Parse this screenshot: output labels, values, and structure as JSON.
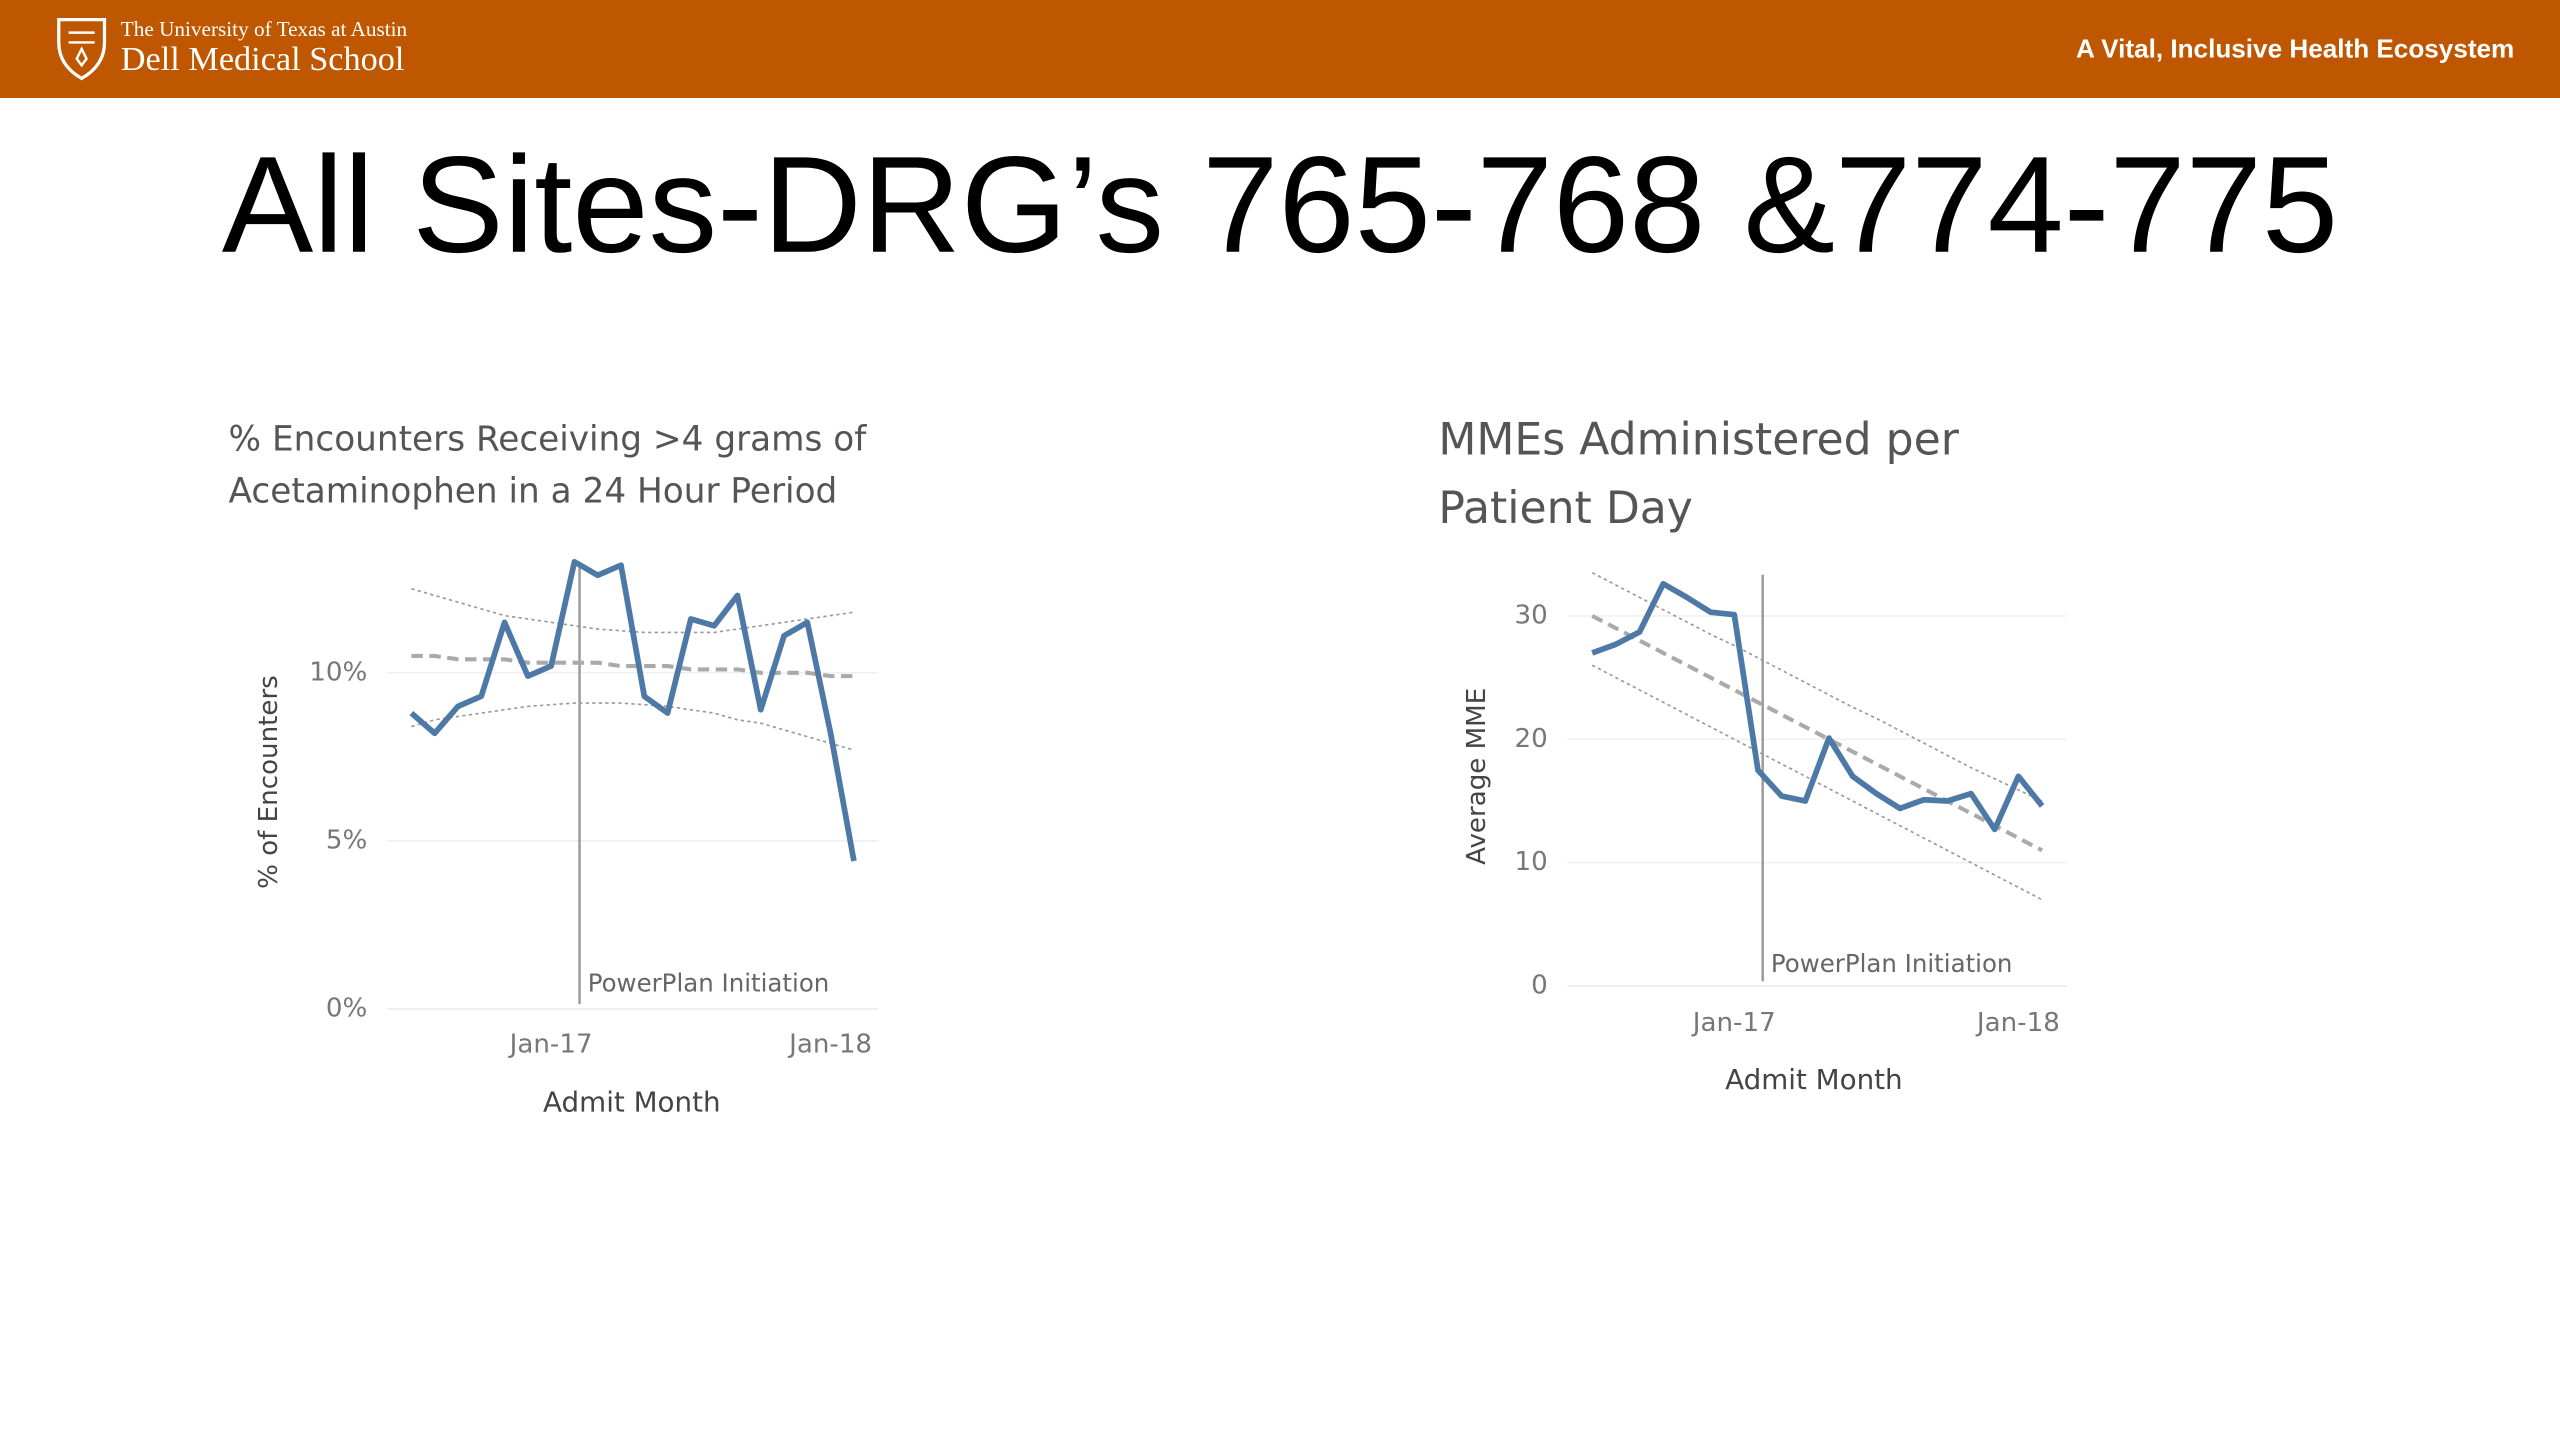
{
  "header": {
    "university": "The University of Texas at Austin",
    "school": "Dell Medical School",
    "tagline": "A Vital, Inclusive Health Ecosystem"
  },
  "title": "All Sites-DRG’s 765-768 &774-775",
  "chart_data": [
    {
      "type": "line",
      "title": [
        "% Encounters Receiving >4 grams of",
        "Acetaminophen in a 24 Hour Period"
      ],
      "x_label": "Admit Month",
      "y_label": "% of Encounters",
      "categories": [
        null,
        null,
        null,
        null,
        null,
        null,
        "Jan-17",
        null,
        null,
        null,
        null,
        null,
        null,
        null,
        null,
        null,
        null,
        null,
        "Jan-18",
        null
      ],
      "series": [
        {
          "color": "#4e79a7",
          "values": [
            8.8,
            8.2,
            9.0,
            9.3,
            11.5,
            9.9,
            10.2,
            13.3,
            12.9,
            13.2,
            9.3,
            8.8,
            11.6,
            11.4,
            12.3,
            8.9,
            11.1,
            11.5,
            8.2,
            4.4
          ]
        }
      ],
      "trend": [
        10.5,
        10.5,
        10.4,
        10.4,
        10.4,
        10.3,
        10.3,
        10.3,
        10.3,
        10.2,
        10.2,
        10.2,
        10.1,
        10.1,
        10.1,
        10.0,
        10.0,
        10.0,
        9.9,
        9.9
      ],
      "upper_band": [
        12.5,
        12.3,
        12.1,
        11.9,
        11.7,
        11.6,
        11.5,
        11.4,
        11.3,
        11.25,
        11.2,
        11.2,
        11.2,
        11.2,
        11.3,
        11.4,
        11.5,
        11.6,
        11.7,
        11.8
      ],
      "lower_band": [
        8.4,
        8.6,
        8.7,
        8.8,
        8.9,
        9.0,
        9.05,
        9.1,
        9.1,
        9.1,
        9.05,
        9.0,
        8.9,
        8.8,
        8.6,
        8.5,
        8.3,
        8.1,
        7.9,
        7.7
      ],
      "annotation": {
        "text": "PowerPlan Initiation",
        "x": 7.22
      },
      "xlim": [
        -1.05,
        20.05
      ],
      "ylim": [
        0,
        13.5
      ],
      "yticks": [
        {
          "value": 0,
          "label": "0%"
        },
        {
          "value": 5,
          "label": "5%"
        },
        {
          "value": 10,
          "label": "10%"
        }
      ],
      "grid": true
    },
    {
      "type": "line",
      "title": [
        "MMEs Administered per",
        "Patient Day"
      ],
      "x_label": "Admit Month",
      "y_label": "Average MME",
      "categories": [
        null,
        null,
        null,
        null,
        null,
        null,
        "Jan-17",
        null,
        null,
        null,
        null,
        null,
        null,
        null,
        null,
        null,
        null,
        null,
        "Jan-18",
        null
      ],
      "series": [
        {
          "color": "#4e79a7",
          "values": [
            27.0,
            27.7,
            28.7,
            32.6,
            31.5,
            30.3,
            30.1,
            17.5,
            15.4,
            15.0,
            20.1,
            17.0,
            15.6,
            14.4,
            15.1,
            15.0,
            15.6,
            12.7,
            17.0,
            14.6
          ]
        }
      ],
      "trend": [
        30.0,
        29.0,
        28.0,
        27.0,
        26.0,
        25.0,
        24.0,
        23.0,
        22.0,
        21.0,
        20.0,
        19.0,
        18.0,
        17.0,
        16.0,
        15.0,
        14.0,
        13.0,
        12.0,
        11.0
      ],
      "upper_band": [
        33.5,
        32.5,
        31.5,
        30.5,
        29.5,
        28.5,
        27.6,
        26.6,
        25.6,
        24.6,
        23.6,
        22.6,
        21.7,
        20.7,
        19.7,
        18.7,
        17.7,
        16.8,
        15.9,
        15.0
      ],
      "lower_band": [
        26.0,
        25.0,
        24.0,
        23.0,
        22.0,
        21.0,
        20.0,
        19.0,
        18.0,
        17.0,
        16.0,
        15.0,
        14.0,
        13.0,
        12.0,
        11.0,
        10.0,
        9.0,
        8.0,
        7.0
      ],
      "annotation": {
        "text": "PowerPlan Initiation",
        "x": 7.2
      },
      "xlim": [
        -1.05,
        20.05
      ],
      "ylim": [
        0,
        34
      ],
      "yticks": [
        0,
        10,
        20,
        30
      ],
      "grid": true
    }
  ]
}
